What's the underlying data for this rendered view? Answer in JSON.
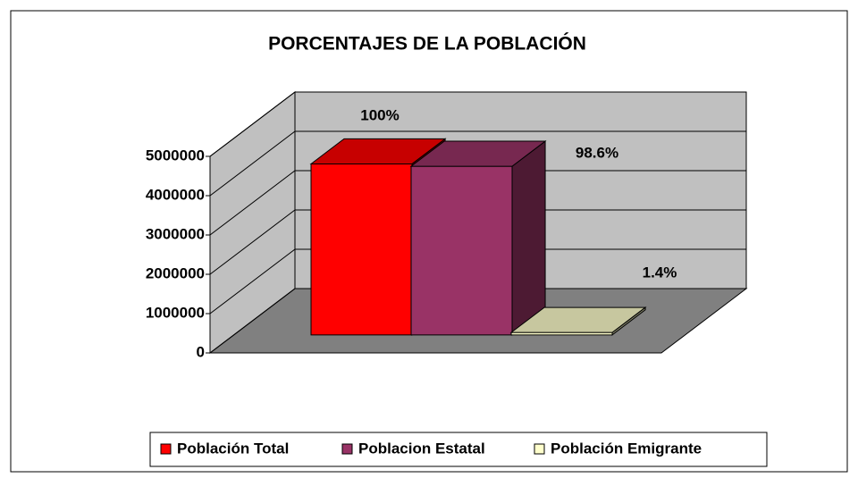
{
  "chart_data": {
    "type": "bar3d",
    "title": "PORCENTAJES DE LA POBLACIÓN",
    "categories": [
      null
    ],
    "series": [
      {
        "name": "Población Total",
        "color": "#ff0000",
        "values": [
          4350000
        ],
        "value_labels": [
          "100%"
        ]
      },
      {
        "name": "Poblacion Estatal",
        "color": "#993366",
        "values": [
          4289100
        ],
        "value_labels": [
          "98.6%"
        ]
      },
      {
        "name": "Población Emigrante",
        "color": "#ffffcc",
        "values": [
          60900
        ],
        "value_labels": [
          "1.4%"
        ]
      }
    ],
    "ylim": [
      0,
      5000000
    ],
    "yticks": [
      0,
      1000000,
      2000000,
      3000000,
      4000000,
      5000000
    ],
    "grid": true,
    "legend": "bottom"
  }
}
